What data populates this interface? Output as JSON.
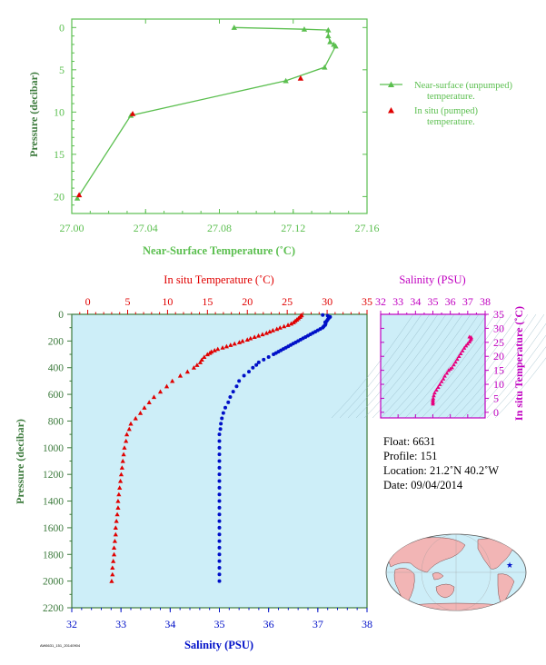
{
  "chart_data": [
    {
      "type": "line",
      "xlabel": "Near-Surface Temperature (˚C)",
      "ylabel": "Pressure (decibar)",
      "xlim": [
        27.0,
        27.16
      ],
      "ylim": [
        22,
        -1
      ],
      "xticks": [
        "27.00",
        "27.04",
        "27.08",
        "27.12",
        "27.16"
      ],
      "yticks": [
        "0",
        "5",
        "10",
        "15",
        "20"
      ],
      "legend_placement": "right",
      "colors": {
        "near_surface": "#5bbf4f",
        "in_situ": "#e00000"
      },
      "series": [
        {
          "name": "Near-surface (unpumped) temperature.",
          "points": [
            [
              27.088,
              0.0
            ],
            [
              27.126,
              0.2
            ],
            [
              27.139,
              0.3
            ],
            [
              27.139,
              1.0
            ],
            [
              27.14,
              1.7
            ],
            [
              27.142,
              2.0
            ],
            [
              27.143,
              2.2
            ],
            [
              27.137,
              4.7
            ],
            [
              27.116,
              6.3
            ],
            [
              27.032,
              10.4
            ],
            [
              27.003,
              20.2
            ]
          ]
        },
        {
          "name": "In situ (pumped) temperature.",
          "points": [
            [
              27.124,
              6.0
            ],
            [
              27.033,
              10.2
            ],
            [
              27.004,
              19.8
            ]
          ]
        }
      ]
    },
    {
      "type": "scatter",
      "ylabel": "Pressure (decibar)",
      "top_xlabel": "In situ Temperature (˚C)",
      "bottom_xlabel": "Salinity (PSU)",
      "temp_xlim": [
        -2,
        35
      ],
      "sal_xlim": [
        32,
        38
      ],
      "ylim": [
        2200,
        0
      ],
      "temp_ticks": [
        "0",
        "5",
        "10",
        "15",
        "20",
        "25",
        "30",
        "35"
      ],
      "sal_ticks": [
        "32",
        "33",
        "34",
        "35",
        "36",
        "37",
        "38"
      ],
      "pressure_ticks": [
        "0",
        "200",
        "400",
        "600",
        "800",
        "1000",
        "1200",
        "1400",
        "1600",
        "1800",
        "2000",
        "2200"
      ],
      "colors": {
        "temperature": "#e00000",
        "salinity": "#0010c8",
        "background": "#cdeef8"
      },
      "temperature_points": [
        [
          26.8,
          5
        ],
        [
          26.7,
          10
        ],
        [
          26.6,
          20
        ],
        [
          26.4,
          30
        ],
        [
          26.2,
          40
        ],
        [
          26.0,
          50
        ],
        [
          25.8,
          60
        ],
        [
          25.5,
          70
        ],
        [
          25.1,
          80
        ],
        [
          24.6,
          90
        ],
        [
          24.1,
          100
        ],
        [
          23.7,
          110
        ],
        [
          23.2,
          120
        ],
        [
          22.8,
          130
        ],
        [
          22.4,
          140
        ],
        [
          21.9,
          150
        ],
        [
          21.4,
          160
        ],
        [
          20.9,
          170
        ],
        [
          20.4,
          180
        ],
        [
          20.0,
          190
        ],
        [
          19.4,
          200
        ],
        [
          19.0,
          210
        ],
        [
          18.4,
          220
        ],
        [
          17.9,
          230
        ],
        [
          17.4,
          240
        ],
        [
          16.9,
          250
        ],
        [
          16.3,
          260
        ],
        [
          15.9,
          270
        ],
        [
          15.5,
          280
        ],
        [
          15.3,
          290
        ],
        [
          15.0,
          300
        ],
        [
          14.6,
          320
        ],
        [
          14.3,
          340
        ],
        [
          14.1,
          360
        ],
        [
          13.7,
          380
        ],
        [
          13.3,
          400
        ],
        [
          12.5,
          430
        ],
        [
          11.6,
          460
        ],
        [
          10.6,
          500
        ],
        [
          9.9,
          540
        ],
        [
          9.1,
          580
        ],
        [
          8.3,
          620
        ],
        [
          7.7,
          660
        ],
        [
          7.1,
          700
        ],
        [
          6.6,
          740
        ],
        [
          6.0,
          780
        ],
        [
          5.4,
          820
        ],
        [
          5.2,
          860
        ],
        [
          4.9,
          900
        ],
        [
          4.8,
          950
        ],
        [
          4.6,
          1000
        ],
        [
          4.5,
          1050
        ],
        [
          4.4,
          1100
        ],
        [
          4.3,
          1150
        ],
        [
          4.2,
          1200
        ],
        [
          4.1,
          1250
        ],
        [
          4.0,
          1300
        ],
        [
          3.9,
          1350
        ],
        [
          3.8,
          1400
        ],
        [
          3.8,
          1450
        ],
        [
          3.7,
          1500
        ],
        [
          3.6,
          1550
        ],
        [
          3.5,
          1600
        ],
        [
          3.5,
          1650
        ],
        [
          3.4,
          1700
        ],
        [
          3.3,
          1750
        ],
        [
          3.3,
          1800
        ],
        [
          3.2,
          1850
        ],
        [
          3.1,
          1900
        ],
        [
          3.1,
          1950
        ],
        [
          3.0,
          2000
        ]
      ],
      "salinity_points": [
        [
          37.1,
          5
        ],
        [
          37.2,
          10
        ],
        [
          37.25,
          20
        ],
        [
          37.22,
          30
        ],
        [
          37.2,
          40
        ],
        [
          37.18,
          50
        ],
        [
          37.15,
          60
        ],
        [
          37.16,
          70
        ],
        [
          37.15,
          80
        ],
        [
          37.12,
          90
        ],
        [
          37.1,
          100
        ],
        [
          37.05,
          110
        ],
        [
          37.0,
          120
        ],
        [
          36.95,
          130
        ],
        [
          36.9,
          140
        ],
        [
          36.85,
          150
        ],
        [
          36.8,
          160
        ],
        [
          36.75,
          170
        ],
        [
          36.7,
          180
        ],
        [
          36.65,
          190
        ],
        [
          36.6,
          200
        ],
        [
          36.55,
          210
        ],
        [
          36.5,
          220
        ],
        [
          36.45,
          230
        ],
        [
          36.4,
          240
        ],
        [
          36.35,
          250
        ],
        [
          36.3,
          260
        ],
        [
          36.25,
          270
        ],
        [
          36.2,
          280
        ],
        [
          36.15,
          290
        ],
        [
          36.1,
          300
        ],
        [
          36.0,
          320
        ],
        [
          35.9,
          340
        ],
        [
          35.8,
          360
        ],
        [
          35.75,
          380
        ],
        [
          35.68,
          400
        ],
        [
          35.6,
          430
        ],
        [
          35.5,
          460
        ],
        [
          35.4,
          500
        ],
        [
          35.35,
          540
        ],
        [
          35.28,
          580
        ],
        [
          35.22,
          620
        ],
        [
          35.18,
          660
        ],
        [
          35.12,
          700
        ],
        [
          35.08,
          740
        ],
        [
          35.05,
          780
        ],
        [
          35.03,
          820
        ],
        [
          35.02,
          860
        ],
        [
          35.0,
          900
        ],
        [
          35.0,
          950
        ],
        [
          35.0,
          1000
        ],
        [
          35.0,
          1050
        ],
        [
          35.0,
          1100
        ],
        [
          35.0,
          1150
        ],
        [
          35.0,
          1200
        ],
        [
          35.0,
          1250
        ],
        [
          35.0,
          1300
        ],
        [
          35.0,
          1350
        ],
        [
          35.0,
          1400
        ],
        [
          35.0,
          1450
        ],
        [
          35.0,
          1500
        ],
        [
          35.0,
          1550
        ],
        [
          35.0,
          1600
        ],
        [
          35.0,
          1650
        ],
        [
          35.0,
          1700
        ],
        [
          35.0,
          1750
        ],
        [
          35.0,
          1800
        ],
        [
          35.0,
          1850
        ],
        [
          35.0,
          1900
        ],
        [
          35.0,
          1950
        ],
        [
          35.0,
          2000
        ]
      ]
    },
    {
      "type": "scatter",
      "xlabel": "Salinity (PSU)",
      "ylabel": "In situ Temperature (˚C)",
      "xlim": [
        32,
        38
      ],
      "ylim": [
        -2,
        35
      ],
      "xticks": [
        "32",
        "33",
        "34",
        "35",
        "36",
        "37",
        "38"
      ],
      "yticks": [
        "0",
        "5",
        "10",
        "15",
        "20",
        "25",
        "30",
        "35"
      ],
      "colors": {
        "points": "#e6007e",
        "axes": "#c000c0"
      },
      "points": [
        [
          35.0,
          3.0
        ],
        [
          35.0,
          3.5
        ],
        [
          35.0,
          4.0
        ],
        [
          35.0,
          4.5
        ],
        [
          35.02,
          5.0
        ],
        [
          35.05,
          6.0
        ],
        [
          35.1,
          7.0
        ],
        [
          35.2,
          8.0
        ],
        [
          35.3,
          9.0
        ],
        [
          35.4,
          10.0
        ],
        [
          35.5,
          11.0
        ],
        [
          35.6,
          12.0
        ],
        [
          35.68,
          13.0
        ],
        [
          35.8,
          14.0
        ],
        [
          35.9,
          15.0
        ],
        [
          36.0,
          15.5
        ],
        [
          36.1,
          16.0
        ],
        [
          36.2,
          17.0
        ],
        [
          36.3,
          18.0
        ],
        [
          36.4,
          19.0
        ],
        [
          36.5,
          20.0
        ],
        [
          36.6,
          21.0
        ],
        [
          36.7,
          22.0
        ],
        [
          36.8,
          23.0
        ],
        [
          36.9,
          23.8
        ],
        [
          37.0,
          24.5
        ],
        [
          37.1,
          25.2
        ],
        [
          37.15,
          25.8
        ],
        [
          37.2,
          26.3
        ],
        [
          37.2,
          26.8
        ],
        [
          37.1,
          27.0
        ]
      ]
    }
  ],
  "float_info": {
    "float": "Float:  6631",
    "profile": "Profile:  151",
    "location": "Location:  21.2˚N  40.2˚W",
    "date": "Date:  09/04/2014"
  },
  "footer_code": "AW6631_151_20140904"
}
